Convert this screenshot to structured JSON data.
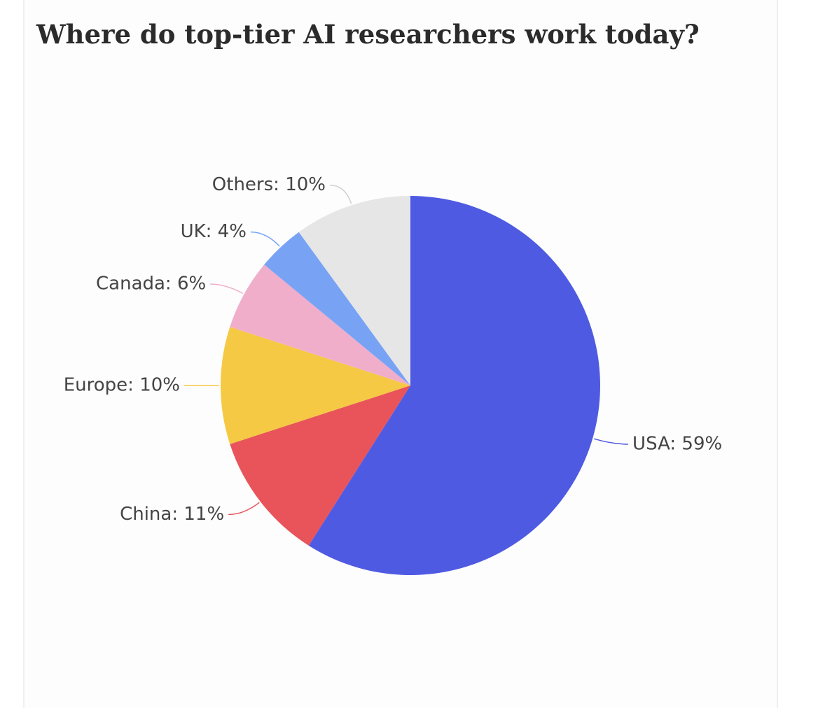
{
  "chart_data": {
    "type": "pie",
    "title": "Where do top-tier AI researchers work today?",
    "values": [
      59,
      11,
      10,
      6,
      4,
      10
    ],
    "value_labels": [
      "USA: 59%",
      "China: 11%",
      "Europe: 10%",
      "Canada: 6%",
      "UK: 4%",
      "Others: 10%"
    ],
    "colors": [
      "#4f5ae2",
      "#e8545a",
      "#f6c944",
      "#f0aecb",
      "#78a3f5",
      "#e6e6e6"
    ]
  }
}
